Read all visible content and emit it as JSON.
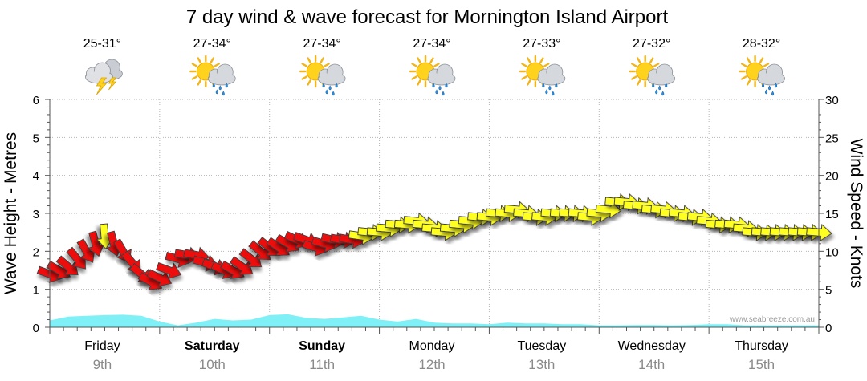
{
  "chart_data": {
    "type": "line",
    "title": "7 day wind & wave forecast for Mornington Island Airport",
    "ylabel_left": "Wave Height - Metres",
    "ylabel_right": "Wind Speed - Knots",
    "ylim_left": [
      0,
      6
    ],
    "ylim_right": [
      0,
      30
    ],
    "yticks_left": [
      "0",
      "1",
      "2",
      "3",
      "4",
      "5",
      "6"
    ],
    "yticks_right": [
      "0",
      "5",
      "10",
      "15",
      "20",
      "25",
      "30"
    ],
    "x_hours": [
      0,
      168
    ],
    "watermark": "www.seabreeze.com.au",
    "days": [
      {
        "name": "Friday",
        "date": "9th",
        "bold": false,
        "temp": "25-31°",
        "icon": "storm-icon"
      },
      {
        "name": "Saturday",
        "date": "10th",
        "bold": true,
        "temp": "27-34°",
        "icon": "sun-shower-icon"
      },
      {
        "name": "Sunday",
        "date": "11th",
        "bold": true,
        "temp": "27-34°",
        "icon": "sun-shower-icon"
      },
      {
        "name": "Monday",
        "date": "12th",
        "bold": false,
        "temp": "27-34°",
        "icon": "sun-shower-icon"
      },
      {
        "name": "Tuesday",
        "date": "13th",
        "bold": false,
        "temp": "27-33°",
        "icon": "sun-shower-icon"
      },
      {
        "name": "Wednesday",
        "date": "14th",
        "bold": false,
        "temp": "27-32°",
        "icon": "sun-shower-icon"
      },
      {
        "name": "Thursday",
        "date": "15th",
        "bold": false,
        "temp": "28-32°",
        "icon": "sun-shower-icon"
      }
    ],
    "series": [
      {
        "name": "Wave height",
        "unit": "m",
        "color": "#7ff0f6",
        "x": [
          0,
          4,
          8,
          12,
          16,
          20,
          24,
          28,
          32,
          36,
          40,
          44,
          48,
          52,
          56,
          60,
          64,
          68,
          72,
          76,
          80,
          84,
          88,
          92,
          96,
          100,
          104,
          108,
          112,
          116,
          120,
          124,
          128,
          132,
          136,
          140,
          144,
          148,
          152,
          156,
          160,
          164,
          168
        ],
        "values": [
          0.18,
          0.28,
          0.3,
          0.32,
          0.33,
          0.3,
          0.15,
          0.05,
          0.12,
          0.22,
          0.18,
          0.2,
          0.32,
          0.34,
          0.25,
          0.22,
          0.26,
          0.3,
          0.2,
          0.15,
          0.22,
          0.12,
          0.1,
          0.1,
          0.08,
          0.12,
          0.1,
          0.1,
          0.08,
          0.08,
          0.05,
          0.05,
          0.06,
          0.06,
          0.05,
          0.06,
          0.08,
          0.08,
          0.05,
          0.05,
          0.05,
          0.05,
          0.05
        ]
      },
      {
        "name": "Wind speed",
        "unit": "knots",
        "color_strong": "#ee1111",
        "color_light": "#ffff22",
        "x": [
          0,
          2,
          4,
          6,
          8,
          10,
          12,
          14,
          16,
          18,
          20,
          22,
          24,
          26,
          28,
          30,
          32,
          34,
          36,
          38,
          40,
          42,
          44,
          46,
          48,
          50,
          52,
          54,
          56,
          58,
          60,
          62,
          64,
          66,
          68,
          70,
          72,
          74,
          76,
          78,
          80,
          82,
          84,
          86,
          88,
          90,
          92,
          94,
          96,
          98,
          100,
          102,
          104,
          106,
          108,
          110,
          112,
          114,
          116,
          118,
          120,
          122,
          124,
          126,
          128,
          130,
          132,
          134,
          136,
          138,
          140,
          142,
          144,
          146,
          148,
          150,
          152,
          154,
          156,
          158,
          160,
          162,
          164,
          166,
          168
        ],
        "values": [
          7,
          7.5,
          8,
          9,
          10,
          11,
          12,
          11,
          10,
          8.5,
          7,
          6,
          6.5,
          7.5,
          9,
          9.5,
          9.5,
          8.5,
          8,
          7.5,
          7.5,
          8,
          9,
          10,
          10.5,
          10.5,
          11,
          11.5,
          11.5,
          10.5,
          11,
          11.5,
          11.5,
          11.5,
          12,
          12.5,
          12.5,
          13,
          13.5,
          13.5,
          14,
          13.5,
          13,
          12.5,
          13,
          13.5,
          14,
          14.5,
          14.5,
          15,
          15,
          15.5,
          15,
          14.5,
          14.5,
          15,
          15,
          15,
          15,
          14.5,
          15,
          15.5,
          16.5,
          16.5,
          16,
          16,
          15.5,
          15.5,
          15,
          15,
          14.5,
          14.5,
          14,
          13.5,
          13.5,
          13.5,
          13,
          12.5,
          12.5,
          12.5,
          12.5,
          12.5,
          12.5,
          12.5,
          12.5
        ],
        "direction_deg": [
          110,
          120,
          130,
          140,
          150,
          165,
          175,
          165,
          150,
          140,
          130,
          120,
          115,
          110,
          105,
          100,
          100,
          105,
          110,
          115,
          120,
          125,
          128,
          130,
          128,
          125,
          120,
          115,
          110,
          108,
          105,
          103,
          100,
          100,
          98,
          96,
          95,
          95,
          95,
          95,
          95,
          95,
          95,
          95,
          95,
          95,
          95,
          95,
          95,
          95,
          95,
          95,
          95,
          95,
          95,
          95,
          95,
          95,
          95,
          95,
          95,
          95,
          95,
          95,
          95,
          95,
          95,
          95,
          95,
          95,
          95,
          95,
          95,
          95,
          95,
          95,
          95,
          95,
          95,
          95,
          95,
          95,
          95,
          95,
          95
        ]
      }
    ]
  }
}
